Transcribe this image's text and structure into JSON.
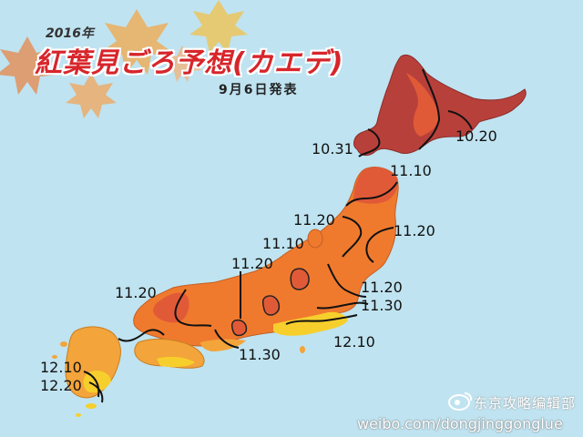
{
  "title": {
    "year": "2016年",
    "main": "紅葉見ごろ予想(カエデ)",
    "date": "9月6日発表"
  },
  "labels": {
    "hokkaido_east": "10.20",
    "hokkaido_south": "10.31",
    "tohoku_north": "11.10",
    "tohoku_east": "11.20",
    "tohoku_west": "11.20",
    "niigata_inland": "11.10",
    "chubu_mountain": "11.20",
    "kanto_north": "11.20",
    "kanto_south": "11.30",
    "kanto_coast": "12.10",
    "chugoku": "11.20",
    "kinki": "11.30",
    "kyushu_a": "12.10",
    "kyushu_b": "12.20"
  },
  "watermark": {
    "source": "东京攻略编辑部",
    "url": "weibo.com/dongjinggonglue"
  },
  "colors": {
    "sea": "#bfe3f0",
    "earliest_zone": "#b8403b",
    "early_zone": "#e15a38",
    "mid_zone": "#ef7a2e",
    "late_zone": "#f3a43a",
    "latest_zone": "#f7cf2c",
    "title_red": "#d7262b"
  },
  "icons": {
    "background_decoration": "maple-leaf-icon",
    "watermark_logo": "weibo-logo-icon"
  }
}
